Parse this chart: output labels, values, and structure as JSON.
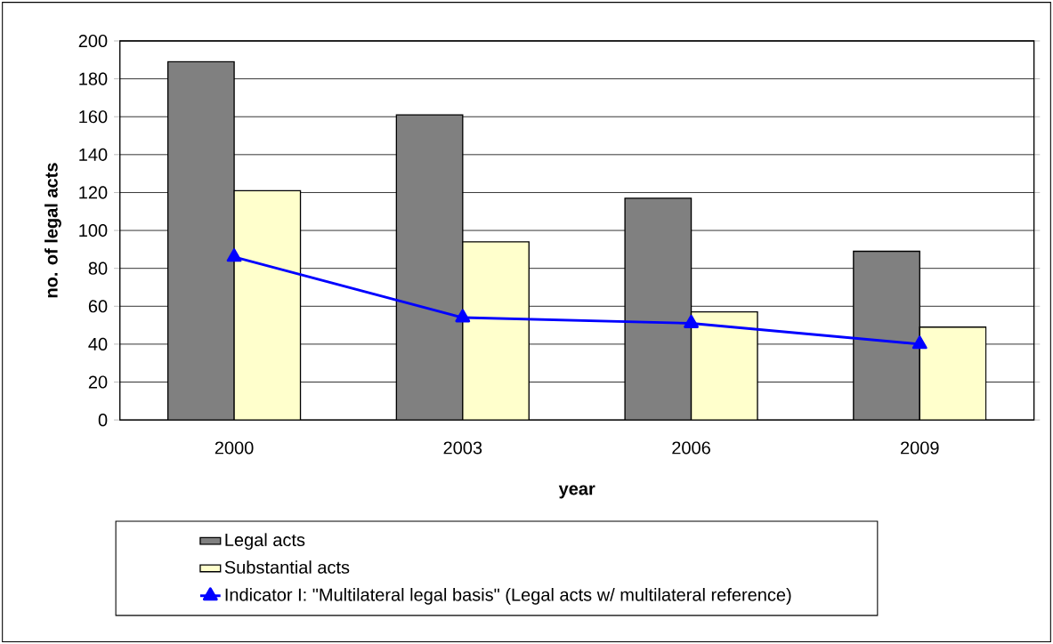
{
  "chart_data": {
    "type": "bar",
    "xlabel": "year",
    "ylabel": "no. of legal acts",
    "categories": [
      "2000",
      "2003",
      "2006",
      "2009"
    ],
    "series": [
      {
        "name": "Legal acts",
        "color": "#808080",
        "values": [
          189,
          161,
          117,
          89
        ]
      },
      {
        "name": "Substantial acts",
        "color": "#ffffcc",
        "values": [
          121,
          94,
          57,
          49
        ]
      },
      {
        "name": "Indicator I: \"Multilateral legal basis\" (Legal acts w/ multilateral reference)",
        "type": "line",
        "color": "#0000ff",
        "marker": "triangle",
        "values": [
          86,
          54,
          51,
          40
        ]
      }
    ],
    "ylim": [
      0,
      200
    ],
    "yticks": [
      0,
      20,
      40,
      60,
      80,
      100,
      120,
      140,
      160,
      180,
      200
    ],
    "grid": "y",
    "legend": "bottom"
  }
}
